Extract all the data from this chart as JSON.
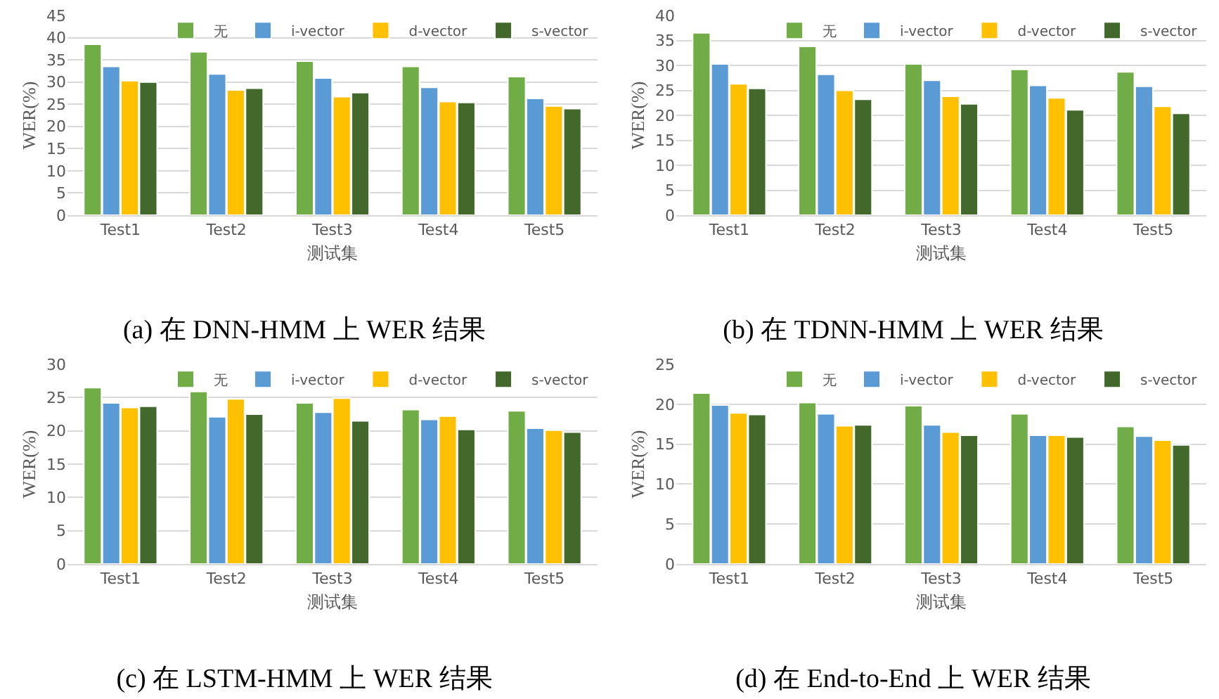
{
  "chart_data": [
    {
      "type": "bar",
      "title": "(a) 在 DNN-HMM 上 WER 结果",
      "xlabel": "测试集",
      "ylabel": "WER(%)",
      "categories": [
        "Test1",
        "Test2",
        "Test3",
        "Test4",
        "Test5"
      ],
      "ylim": [
        0,
        45
      ],
      "yticks": [
        0,
        5,
        10,
        15,
        20,
        25,
        30,
        35,
        40,
        45
      ],
      "grid": "y",
      "legend": "top right",
      "series": [
        {
          "name": "无",
          "color": "#70ad47",
          "values": [
            38.5,
            36.8,
            34.7,
            33.5,
            31.2
          ]
        },
        {
          "name": "i-vector",
          "color": "#5b9bd5",
          "values": [
            33.5,
            31.8,
            30.9,
            28.8,
            26.3
          ]
        },
        {
          "name": "d-vector",
          "color": "#ffc000",
          "values": [
            30.3,
            28.2,
            26.7,
            25.6,
            24.6
          ]
        },
        {
          "name": "s-vector",
          "color": "#43682b",
          "values": [
            30.0,
            28.6,
            27.6,
            25.4,
            24.0
          ]
        }
      ]
    },
    {
      "type": "bar",
      "title": "(b) 在 TDNN-HMM 上 WER 结果",
      "xlabel": "测试集",
      "ylabel": "WER(%)",
      "categories": [
        "Test1",
        "Test2",
        "Test3",
        "Test4",
        "Test5"
      ],
      "ylim": [
        0,
        40
      ],
      "yticks": [
        0,
        5,
        10,
        15,
        20,
        25,
        30,
        35,
        40
      ],
      "grid": "y",
      "legend": "top right",
      "series": [
        {
          "name": "无",
          "color": "#70ad47",
          "values": [
            36.5,
            33.8,
            30.3,
            29.2,
            28.7
          ]
        },
        {
          "name": "i-vector",
          "color": "#5b9bd5",
          "values": [
            30.3,
            28.2,
            27.0,
            26.0,
            25.8
          ]
        },
        {
          "name": "d-vector",
          "color": "#ffc000",
          "values": [
            26.3,
            25.0,
            23.8,
            23.5,
            21.8
          ]
        },
        {
          "name": "s-vector",
          "color": "#43682b",
          "values": [
            25.4,
            23.2,
            22.3,
            21.1,
            20.4
          ]
        }
      ]
    },
    {
      "type": "bar",
      "title": "(c) 在 LSTM-HMM 上 WER 结果",
      "xlabel": "测试集",
      "ylabel": "WER(%)",
      "categories": [
        "Test1",
        "Test2",
        "Test3",
        "Test4",
        "Test5"
      ],
      "ylim": [
        0,
        30
      ],
      "yticks": [
        0,
        5,
        10,
        15,
        20,
        25,
        30
      ],
      "grid": "y",
      "legend": "top right",
      "series": [
        {
          "name": "无",
          "color": "#70ad47",
          "values": [
            26.5,
            25.9,
            24.2,
            23.2,
            23.0
          ]
        },
        {
          "name": "i-vector",
          "color": "#5b9bd5",
          "values": [
            24.2,
            22.1,
            22.8,
            21.7,
            20.4
          ]
        },
        {
          "name": "d-vector",
          "color": "#ffc000",
          "values": [
            23.5,
            24.8,
            24.9,
            22.2,
            20.1
          ]
        },
        {
          "name": "s-vector",
          "color": "#43682b",
          "values": [
            23.7,
            22.5,
            21.5,
            20.2,
            19.8
          ]
        }
      ]
    },
    {
      "type": "bar",
      "title": "(d) 在 End-to-End 上 WER 结果",
      "xlabel": "测试集",
      "ylabel": "WER(%)",
      "categories": [
        "Test1",
        "Test2",
        "Test3",
        "Test4",
        "Test5"
      ],
      "ylim": [
        0,
        25
      ],
      "yticks": [
        0,
        5,
        10,
        15,
        20,
        25
      ],
      "grid": "y",
      "legend": "top right",
      "series": [
        {
          "name": "无",
          "color": "#70ad47",
          "values": [
            21.4,
            20.2,
            19.8,
            18.8,
            17.2
          ]
        },
        {
          "name": "i-vector",
          "color": "#5b9bd5",
          "values": [
            19.9,
            18.8,
            17.4,
            16.1,
            16.0
          ]
        },
        {
          "name": "d-vector",
          "color": "#ffc000",
          "values": [
            18.9,
            17.3,
            16.5,
            16.1,
            15.5
          ]
        },
        {
          "name": "s-vector",
          "color": "#43682b",
          "values": [
            18.7,
            17.4,
            16.1,
            15.9,
            14.9
          ]
        }
      ]
    }
  ]
}
